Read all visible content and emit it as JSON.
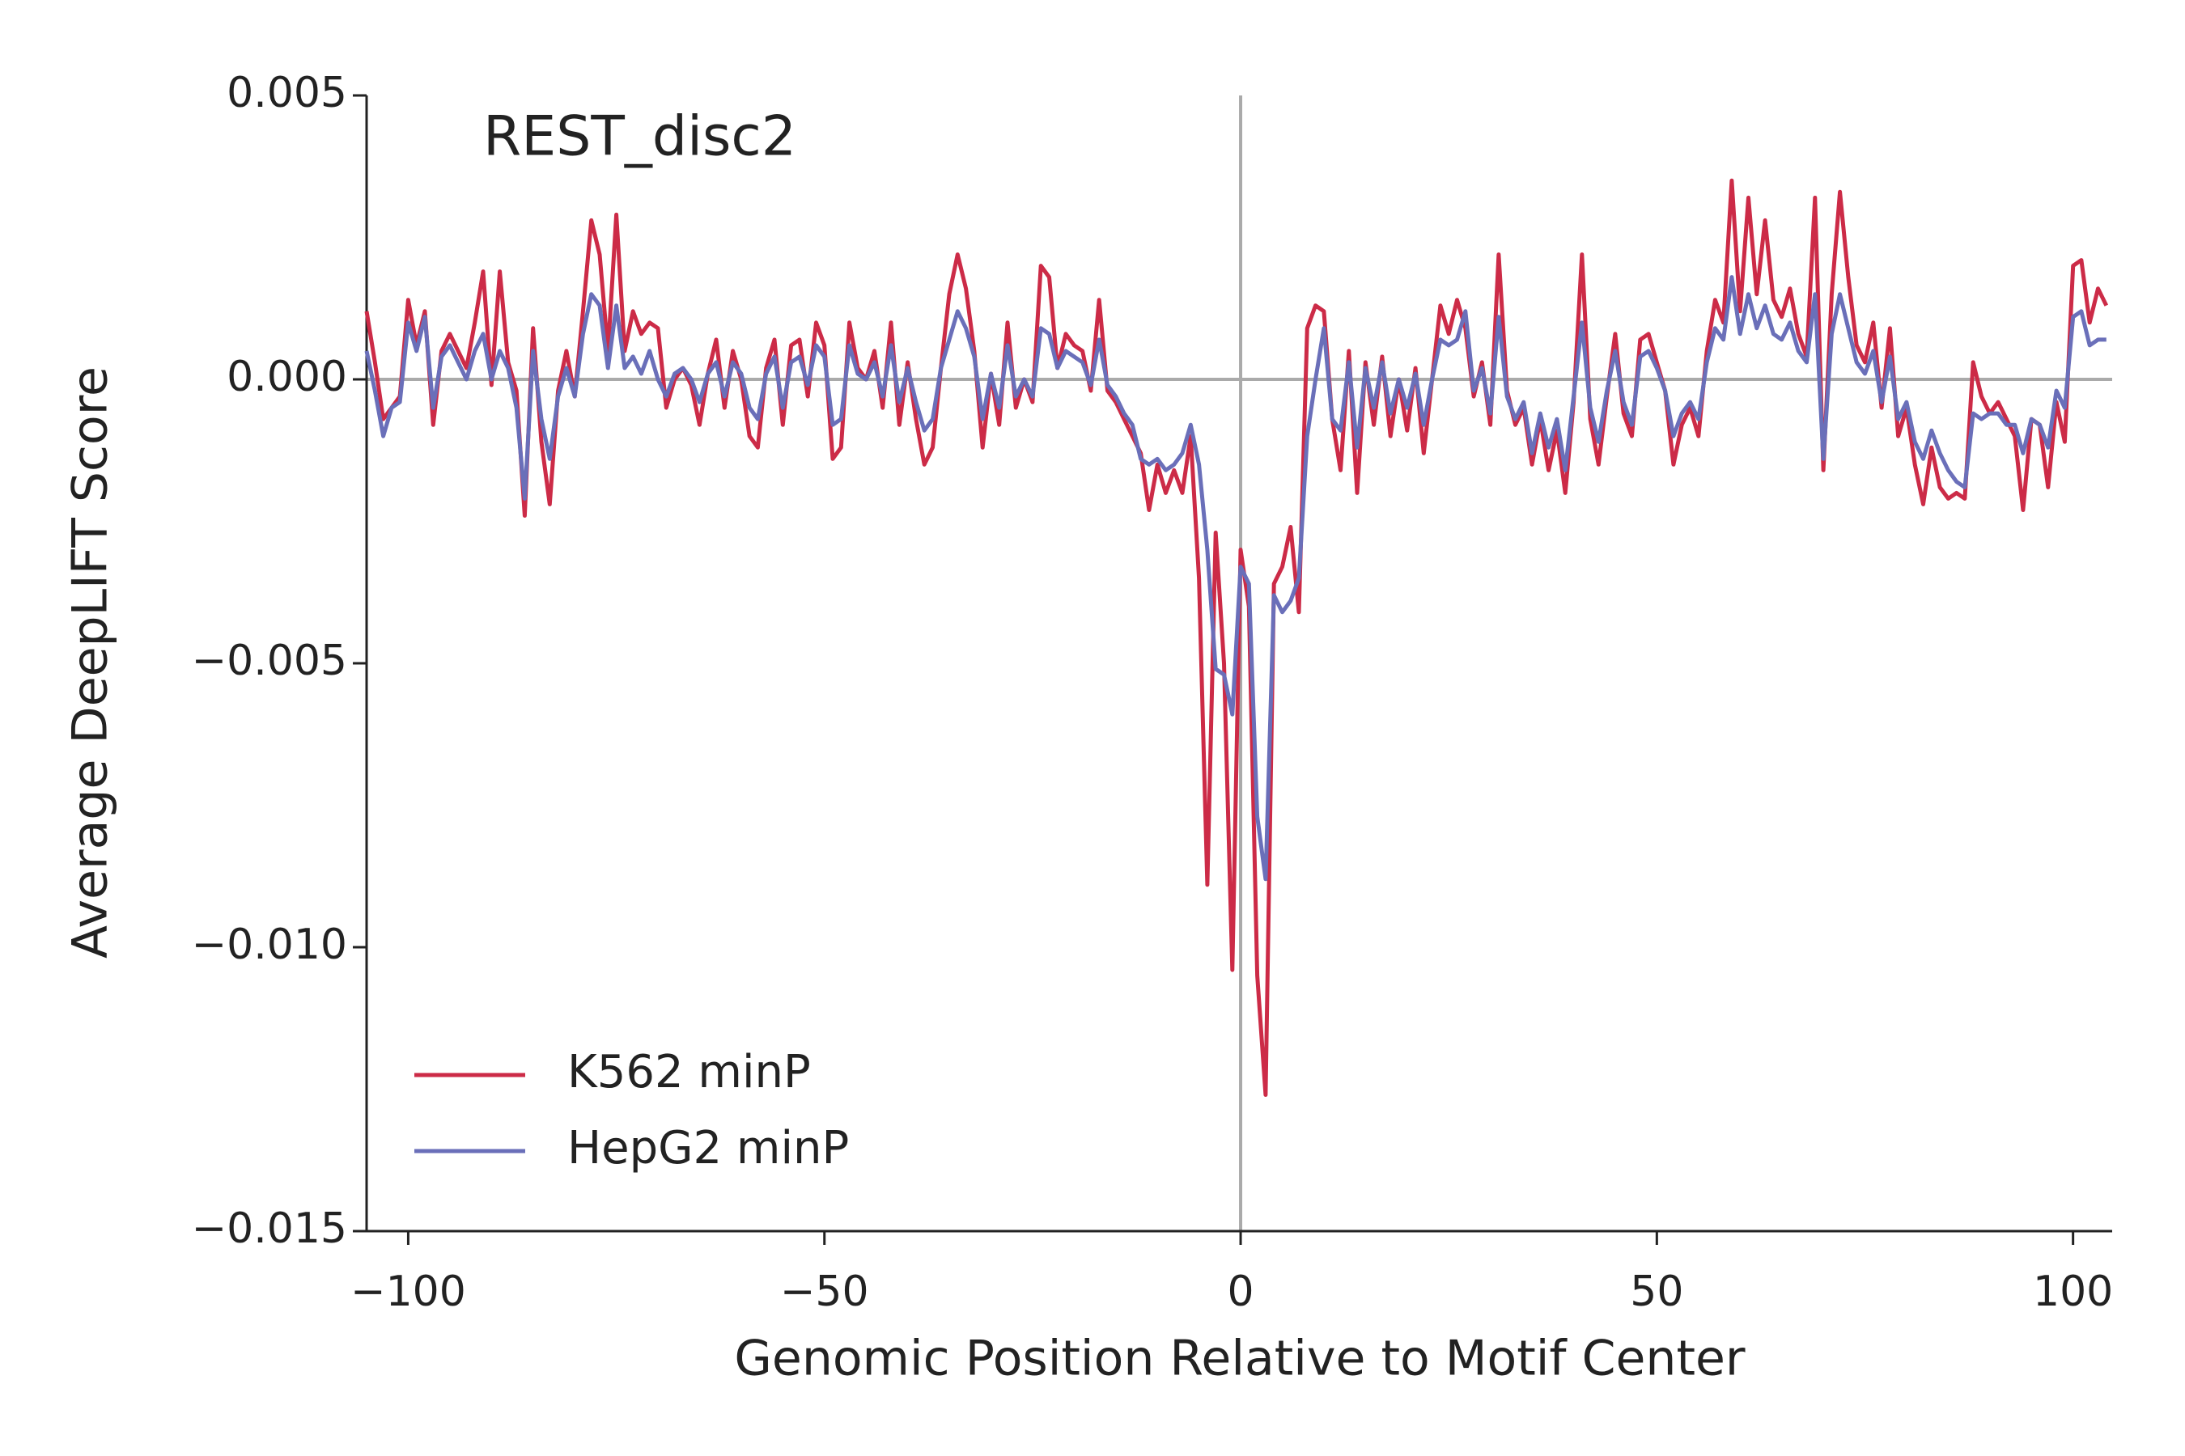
{
  "chart_data": {
    "type": "line",
    "annotation": "REST_disc2",
    "xlabel": "Genomic Position Relative to Motif Center",
    "ylabel": "Average DeepLIFT Score",
    "x": [
      -105,
      -104,
      -103,
      -102,
      -101,
      -100,
      -99,
      -98,
      -97,
      -96,
      -95,
      -94,
      -93,
      -92,
      -91,
      -90,
      -89,
      -88,
      -87,
      -86,
      -85,
      -84,
      -83,
      -82,
      -81,
      -80,
      -79,
      -78,
      -77,
      -76,
      -75,
      -74,
      -73,
      -72,
      -71,
      -70,
      -69,
      -68,
      -67,
      -66,
      -65,
      -64,
      -63,
      -62,
      -61,
      -60,
      -59,
      -58,
      -57,
      -56,
      -55,
      -54,
      -53,
      -52,
      -51,
      -50,
      -49,
      -48,
      -47,
      -46,
      -45,
      -44,
      -43,
      -42,
      -41,
      -40,
      -39,
      -38,
      -37,
      -36,
      -35,
      -34,
      -33,
      -32,
      -31,
      -30,
      -29,
      -28,
      -27,
      -26,
      -25,
      -24,
      -23,
      -22,
      -21,
      -20,
      -19,
      -18,
      -17,
      -16,
      -15,
      -14,
      -13,
      -12,
      -11,
      -10,
      -9,
      -8,
      -7,
      -6,
      -5,
      -4,
      -3,
      -2,
      -1,
      0,
      1,
      2,
      3,
      4,
      5,
      6,
      7,
      8,
      9,
      10,
      11,
      12,
      13,
      14,
      15,
      16,
      17,
      18,
      19,
      20,
      21,
      22,
      23,
      24,
      25,
      26,
      27,
      28,
      29,
      30,
      31,
      32,
      33,
      34,
      35,
      36,
      37,
      38,
      39,
      40,
      41,
      42,
      43,
      44,
      45,
      46,
      47,
      48,
      49,
      50,
      51,
      52,
      53,
      54,
      55,
      56,
      57,
      58,
      59,
      60,
      61,
      62,
      63,
      64,
      65,
      66,
      67,
      68,
      69,
      70,
      71,
      72,
      73,
      74,
      75,
      76,
      77,
      78,
      79,
      80,
      81,
      82,
      83,
      84,
      85,
      86,
      87,
      88,
      89,
      90,
      91,
      92,
      93,
      94,
      95,
      96,
      97,
      98,
      99,
      100,
      101,
      102,
      103,
      104
    ],
    "series": [
      {
        "name": "K562 minP",
        "color": "#cc2b47",
        "values": [
          0.0012,
          0.0003,
          -0.0007,
          -0.0005,
          -0.0003,
          0.0014,
          0.0006,
          0.0012,
          -0.0008,
          0.0005,
          0.0008,
          0.0005,
          0.0002,
          0.001,
          0.0019,
          -0.0001,
          0.0019,
          0.0003,
          -0.0002,
          -0.0024,
          0.0009,
          -0.0011,
          -0.0022,
          -0.0002,
          0.0005,
          -0.0003,
          0.0012,
          0.0028,
          0.0022,
          0.0005,
          0.0029,
          0.0005,
          0.0012,
          0.0008,
          0.001,
          0.0009,
          -0.0005,
          0,
          0.0002,
          -0.0001,
          -0.0008,
          0.0001,
          0.0007,
          -0.0005,
          0.0005,
          0,
          -0.001,
          -0.0012,
          0.0002,
          0.0007,
          -0.0008,
          0.0006,
          0.0007,
          -0.0003,
          0.001,
          0.0006,
          -0.0014,
          -0.0012,
          0.001,
          0.0002,
          0,
          0.0005,
          -0.0005,
          0.001,
          -0.0008,
          0.0003,
          -0.0007,
          -0.0015,
          -0.0012,
          0.0002,
          0.0015,
          0.0022,
          0.0016,
          0.0005,
          -0.0012,
          0.0001,
          -0.0008,
          0.001,
          -0.0005,
          0,
          -0.0004,
          0.002,
          0.0018,
          0.0002,
          0.0008,
          0.0006,
          0.0005,
          -0.0002,
          0.0014,
          -0.0002,
          -0.0004,
          -0.0007,
          -0.001,
          -0.0013,
          -0.0023,
          -0.0015,
          -0.002,
          -0.0016,
          -0.002,
          -0.001,
          -0.0035,
          -0.0089,
          -0.0027,
          -0.005,
          -0.0104,
          -0.003,
          -0.004,
          -0.0105,
          -0.0126,
          -0.0036,
          -0.0033,
          -0.0026,
          -0.0041,
          0.0009,
          0.0013,
          0.0012,
          -0.0007,
          -0.0016,
          0.0005,
          -0.002,
          0.0003,
          -0.0008,
          0.0004,
          -0.001,
          0,
          -0.0009,
          0.0002,
          -0.0013,
          0,
          0.0013,
          0.0008,
          0.0014,
          0.0009,
          -0.0003,
          0.0003,
          -0.0008,
          0.0022,
          -0.0002,
          -0.0008,
          -0.0005,
          -0.0015,
          -0.0007,
          -0.0016,
          -0.0009,
          -0.002,
          -0.0004,
          0.0022,
          -0.0007,
          -0.0015,
          -0.0003,
          0.0008,
          -0.0006,
          -0.001,
          0.0007,
          0.0008,
          0.0003,
          -0.0002,
          -0.0015,
          -0.0008,
          -0.0005,
          -0.001,
          0.0005,
          0.0014,
          0.001,
          0.0035,
          0.0012,
          0.0032,
          0.0015,
          0.0028,
          0.0014,
          0.0011,
          0.0016,
          0.0008,
          0.0004,
          0.0032,
          -0.0016,
          0.0015,
          0.0033,
          0.0018,
          0.0006,
          0.0003,
          0.001,
          -0.0005,
          0.0009,
          -0.001,
          -0.0005,
          -0.0015,
          -0.0022,
          -0.0012,
          -0.0019,
          -0.0021,
          -0.002,
          -0.0021,
          0.0003,
          -0.0003,
          -0.0006,
          -0.0004,
          -0.0007,
          -0.001,
          -0.0023,
          -0.0007,
          -0.0008,
          -0.0019,
          -0.0004,
          -0.0011,
          0.002,
          0.0021,
          0.001,
          0.0016,
          0.0013
        ]
      },
      {
        "name": "HepG2 minP",
        "color": "#6a6fb9",
        "values": [
          0.0005,
          -0.0002,
          -0.001,
          -0.0005,
          -0.0004,
          0.001,
          0.0005,
          0.0011,
          -0.0005,
          0.0004,
          0.0006,
          0.0003,
          0,
          0.0005,
          0.0008,
          0,
          0.0005,
          0.0002,
          -0.0005,
          -0.0021,
          0.0005,
          -0.0007,
          -0.0014,
          -0.0003,
          0.0002,
          -0.0003,
          0.0008,
          0.0015,
          0.0013,
          0.0002,
          0.0013,
          0.0002,
          0.0004,
          0.0001,
          0.0005,
          0,
          -0.0003,
          0.0001,
          0.0002,
          0,
          -0.0004,
          0.0001,
          0.0003,
          -0.0003,
          0.0003,
          0.0001,
          -0.0005,
          -0.0007,
          0.0001,
          0.0004,
          -0.0005,
          0.0003,
          0.0004,
          -0.0001,
          0.0006,
          0.0004,
          -0.0008,
          -0.0007,
          0.0006,
          0.0001,
          0,
          0.0003,
          -0.0003,
          0.0006,
          -0.0004,
          0.0002,
          -0.0004,
          -0.0009,
          -0.0007,
          0.0002,
          0.0007,
          0.0012,
          0.0009,
          0.0004,
          -0.0007,
          0.0001,
          -0.0005,
          0.0006,
          -0.0003,
          0,
          -0.0003,
          0.0009,
          0.0008,
          0.0002,
          0.0005,
          0.0004,
          0.0003,
          -0.0001,
          0.0007,
          -0.0001,
          -0.0003,
          -0.0006,
          -0.0008,
          -0.0014,
          -0.0015,
          -0.0014,
          -0.0016,
          -0.0015,
          -0.0013,
          -0.0008,
          -0.0015,
          -0.003,
          -0.0051,
          -0.0052,
          -0.0059,
          -0.0033,
          -0.0036,
          -0.0077,
          -0.0088,
          -0.0038,
          -0.0041,
          -0.0039,
          -0.0035,
          -0.001,
          0,
          0.0009,
          -0.0007,
          -0.0009,
          0.0003,
          -0.0012,
          0.0002,
          -0.0005,
          0.0003,
          -0.0006,
          0,
          -0.0005,
          0.0001,
          -0.0008,
          0,
          0.0007,
          0.0006,
          0.0007,
          0.0012,
          -0.0002,
          0.0002,
          -0.0006,
          0.0011,
          -0.0003,
          -0.0007,
          -0.0004,
          -0.0013,
          -0.0006,
          -0.0012,
          -0.0007,
          -0.0016,
          -0.0003,
          0.001,
          -0.0005,
          -0.0011,
          -0.0002,
          0.0005,
          -0.0004,
          -0.0008,
          0.0004,
          0.0005,
          0.0002,
          -0.0002,
          -0.001,
          -0.0006,
          -0.0004,
          -0.0007,
          0.0003,
          0.0009,
          0.0007,
          0.0018,
          0.0008,
          0.0015,
          0.0009,
          0.0013,
          0.0008,
          0.0007,
          0.001,
          0.0005,
          0.0003,
          0.0015,
          -0.0014,
          0.0008,
          0.0015,
          0.0009,
          0.0003,
          0.0001,
          0.0005,
          -0.0004,
          0.0004,
          -0.0007,
          -0.0004,
          -0.0011,
          -0.0014,
          -0.0009,
          -0.0013,
          -0.0016,
          -0.0018,
          -0.0019,
          -0.0006,
          -0.0007,
          -0.0006,
          -0.0006,
          -0.0008,
          -0.0008,
          -0.0013,
          -0.0007,
          -0.0008,
          -0.0012,
          -0.0002,
          -0.0005,
          0.0011,
          0.0012,
          0.0006,
          0.0007,
          0.0007
        ]
      }
    ],
    "xlim": [
      -105,
      104.7
    ],
    "ylim": [
      -0.015,
      0.005
    ],
    "xticks": [
      {
        "value": -100,
        "label": "−100"
      },
      {
        "value": -50,
        "label": "−50"
      },
      0,
      50,
      100
    ],
    "yticks": [
      {
        "value": -0.015,
        "label": "−0.015"
      },
      {
        "value": -0.01,
        "label": "−0.010"
      },
      {
        "value": -0.005,
        "label": "−0.005"
      },
      {
        "value": 0,
        "label": "0.000"
      },
      {
        "value": 0.005,
        "label": "0.005"
      }
    ],
    "hlines": [
      0
    ],
    "vlines": [
      0
    ],
    "legend": "lower left",
    "grid": false
  }
}
